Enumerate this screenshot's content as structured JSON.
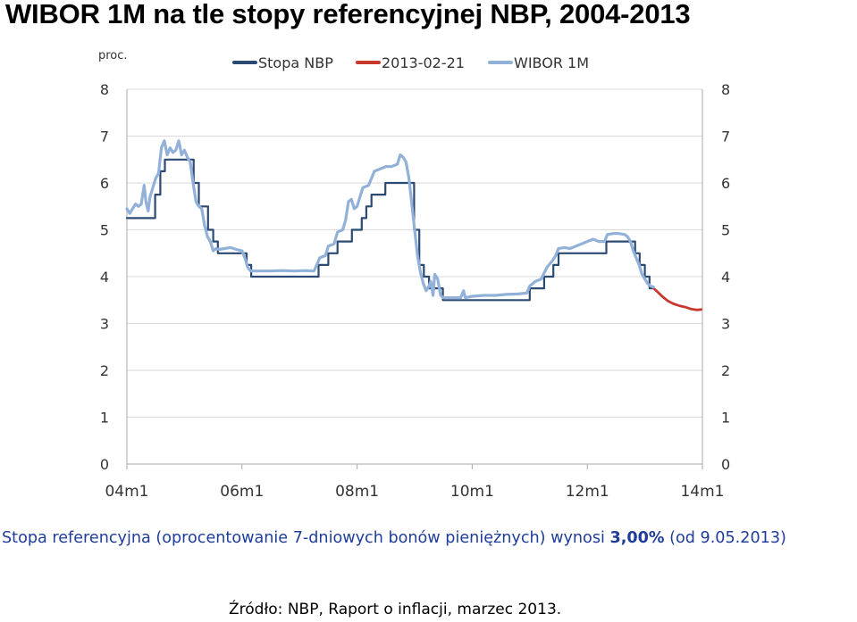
{
  "title": "WIBOR 1M na tle stopy referencyjnej NBP, 2004-2013",
  "note": {
    "prefix": "Stopa referencyjna (oprocentowanie 7-dniowych bonów pieniężnych) wynosi ",
    "value": "3,00%",
    "suffix": " (od 9.05.2013)"
  },
  "source": "Źródło: NBP, Raport o inflacji, marzec 2013.",
  "colors": {
    "stopa": "#2b4a73",
    "forecast": "#c8382e",
    "wibor": "#92b1d8",
    "grid": "#d9d9d9",
    "axis": "#aaaaaa"
  },
  "chart_data": {
    "type": "line",
    "unit_label": "proc.",
    "ylim": [
      0,
      8
    ],
    "yticks": [
      "0",
      "1",
      "2",
      "3",
      "4",
      "5",
      "6",
      "7",
      "8"
    ],
    "xlim": [
      2004.0,
      2014.0
    ],
    "xticks": [
      {
        "label": "04m1",
        "x": 2004.0
      },
      {
        "label": "06m1",
        "x": 2006.0
      },
      {
        "label": "08m1",
        "x": 2008.0
      },
      {
        "label": "10m1",
        "x": 2010.0
      },
      {
        "label": "12m1",
        "x": 2012.0
      },
      {
        "label": "14m1",
        "x": 2014.0
      }
    ],
    "grid": true,
    "legend_position": "top",
    "series": [
      {
        "name": "Stopa NBP",
        "key": "stopa",
        "step": true,
        "points": [
          [
            2004.0,
            5.25
          ],
          [
            2004.49,
            5.75
          ],
          [
            2004.58,
            6.25
          ],
          [
            2004.66,
            6.5
          ],
          [
            2005.08,
            6.5
          ],
          [
            2005.16,
            6.0
          ],
          [
            2005.25,
            5.5
          ],
          [
            2005.41,
            5.0
          ],
          [
            2005.5,
            4.75
          ],
          [
            2005.58,
            4.5
          ],
          [
            2006.08,
            4.25
          ],
          [
            2006.16,
            4.0
          ],
          [
            2007.3,
            4.0
          ],
          [
            2007.33,
            4.25
          ],
          [
            2007.5,
            4.5
          ],
          [
            2007.66,
            4.75
          ],
          [
            2007.91,
            5.0
          ],
          [
            2008.08,
            5.25
          ],
          [
            2008.16,
            5.5
          ],
          [
            2008.25,
            5.75
          ],
          [
            2008.49,
            6.0
          ],
          [
            2008.91,
            6.0
          ],
          [
            2008.99,
            5.0
          ],
          [
            2009.08,
            4.25
          ],
          [
            2009.16,
            4.0
          ],
          [
            2009.25,
            3.75
          ],
          [
            2009.49,
            3.5
          ],
          [
            2010.99,
            3.5
          ],
          [
            2011.0,
            3.75
          ],
          [
            2011.25,
            4.0
          ],
          [
            2011.41,
            4.25
          ],
          [
            2011.5,
            4.5
          ],
          [
            2012.33,
            4.75
          ],
          [
            2012.83,
            4.5
          ],
          [
            2012.91,
            4.25
          ],
          [
            2013.0,
            4.0
          ],
          [
            2013.08,
            3.75
          ],
          [
            2013.15,
            3.75
          ]
        ]
      },
      {
        "name": "2013-02-21",
        "key": "forecast",
        "step": false,
        "points": [
          [
            2013.15,
            3.75
          ],
          [
            2013.2,
            3.7
          ],
          [
            2013.3,
            3.58
          ],
          [
            2013.4,
            3.48
          ],
          [
            2013.5,
            3.42
          ],
          [
            2013.6,
            3.38
          ],
          [
            2013.7,
            3.35
          ],
          [
            2013.8,
            3.31
          ],
          [
            2013.9,
            3.29
          ],
          [
            2013.98,
            3.3
          ]
        ]
      },
      {
        "name": "WIBOR 1M",
        "key": "wibor",
        "step": false,
        "points": [
          [
            2004.0,
            5.45
          ],
          [
            2004.05,
            5.35
          ],
          [
            2004.1,
            5.45
          ],
          [
            2004.15,
            5.55
          ],
          [
            2004.2,
            5.5
          ],
          [
            2004.25,
            5.55
          ],
          [
            2004.3,
            5.95
          ],
          [
            2004.33,
            5.6
          ],
          [
            2004.37,
            5.4
          ],
          [
            2004.4,
            5.7
          ],
          [
            2004.45,
            5.9
          ],
          [
            2004.5,
            6.1
          ],
          [
            2004.55,
            6.2
          ],
          [
            2004.6,
            6.75
          ],
          [
            2004.65,
            6.9
          ],
          [
            2004.7,
            6.6
          ],
          [
            2004.75,
            6.75
          ],
          [
            2004.8,
            6.65
          ],
          [
            2004.85,
            6.7
          ],
          [
            2004.9,
            6.9
          ],
          [
            2004.95,
            6.6
          ],
          [
            2005.0,
            6.7
          ],
          [
            2005.05,
            6.55
          ],
          [
            2005.1,
            6.45
          ],
          [
            2005.15,
            6.0
          ],
          [
            2005.2,
            5.6
          ],
          [
            2005.25,
            5.5
          ],
          [
            2005.3,
            5.45
          ],
          [
            2005.35,
            5.1
          ],
          [
            2005.4,
            4.85
          ],
          [
            2005.45,
            4.75
          ],
          [
            2005.5,
            4.55
          ],
          [
            2005.55,
            4.6
          ],
          [
            2005.6,
            4.58
          ],
          [
            2005.7,
            4.6
          ],
          [
            2005.8,
            4.62
          ],
          [
            2005.9,
            4.58
          ],
          [
            2006.0,
            4.55
          ],
          [
            2006.05,
            4.4
          ],
          [
            2006.1,
            4.2
          ],
          [
            2006.15,
            4.12
          ],
          [
            2006.3,
            4.12
          ],
          [
            2006.5,
            4.12
          ],
          [
            2006.7,
            4.13
          ],
          [
            2006.9,
            4.12
          ],
          [
            2007.1,
            4.13
          ],
          [
            2007.25,
            4.12
          ],
          [
            2007.3,
            4.25
          ],
          [
            2007.35,
            4.4
          ],
          [
            2007.45,
            4.45
          ],
          [
            2007.5,
            4.65
          ],
          [
            2007.6,
            4.7
          ],
          [
            2007.66,
            4.95
          ],
          [
            2007.75,
            5.0
          ],
          [
            2007.8,
            5.2
          ],
          [
            2007.85,
            5.6
          ],
          [
            2007.9,
            5.65
          ],
          [
            2007.95,
            5.45
          ],
          [
            2008.0,
            5.5
          ],
          [
            2008.05,
            5.7
          ],
          [
            2008.1,
            5.9
          ],
          [
            2008.2,
            5.95
          ],
          [
            2008.3,
            6.25
          ],
          [
            2008.4,
            6.3
          ],
          [
            2008.5,
            6.35
          ],
          [
            2008.6,
            6.35
          ],
          [
            2008.7,
            6.4
          ],
          [
            2008.75,
            6.6
          ],
          [
            2008.8,
            6.55
          ],
          [
            2008.85,
            6.45
          ],
          [
            2008.9,
            6.1
          ],
          [
            2008.95,
            5.55
          ],
          [
            2009.0,
            5.0
          ],
          [
            2009.05,
            4.45
          ],
          [
            2009.1,
            4.1
          ],
          [
            2009.15,
            3.85
          ],
          [
            2009.2,
            3.7
          ],
          [
            2009.25,
            3.8
          ],
          [
            2009.28,
            3.9
          ],
          [
            2009.32,
            3.6
          ],
          [
            2009.35,
            4.05
          ],
          [
            2009.4,
            3.95
          ],
          [
            2009.45,
            3.6
          ],
          [
            2009.5,
            3.55
          ],
          [
            2009.6,
            3.55
          ],
          [
            2009.7,
            3.55
          ],
          [
            2009.8,
            3.55
          ],
          [
            2009.85,
            3.7
          ],
          [
            2009.88,
            3.55
          ],
          [
            2010.0,
            3.58
          ],
          [
            2010.2,
            3.6
          ],
          [
            2010.4,
            3.6
          ],
          [
            2010.6,
            3.62
          ],
          [
            2010.8,
            3.63
          ],
          [
            2010.95,
            3.65
          ],
          [
            2011.0,
            3.8
          ],
          [
            2011.1,
            3.9
          ],
          [
            2011.2,
            3.95
          ],
          [
            2011.3,
            4.2
          ],
          [
            2011.4,
            4.35
          ],
          [
            2011.45,
            4.45
          ],
          [
            2011.5,
            4.6
          ],
          [
            2011.6,
            4.62
          ],
          [
            2011.7,
            4.6
          ],
          [
            2011.8,
            4.65
          ],
          [
            2011.9,
            4.7
          ],
          [
            2012.0,
            4.75
          ],
          [
            2012.1,
            4.8
          ],
          [
            2012.2,
            4.75
          ],
          [
            2012.3,
            4.75
          ],
          [
            2012.35,
            4.9
          ],
          [
            2012.45,
            4.92
          ],
          [
            2012.55,
            4.92
          ],
          [
            2012.65,
            4.9
          ],
          [
            2012.7,
            4.85
          ],
          [
            2012.75,
            4.75
          ],
          [
            2012.8,
            4.55
          ],
          [
            2012.85,
            4.4
          ],
          [
            2012.9,
            4.25
          ],
          [
            2012.95,
            4.05
          ],
          [
            2013.0,
            3.95
          ],
          [
            2013.05,
            3.85
          ],
          [
            2013.1,
            3.8
          ],
          [
            2013.15,
            3.78
          ]
        ]
      }
    ]
  }
}
